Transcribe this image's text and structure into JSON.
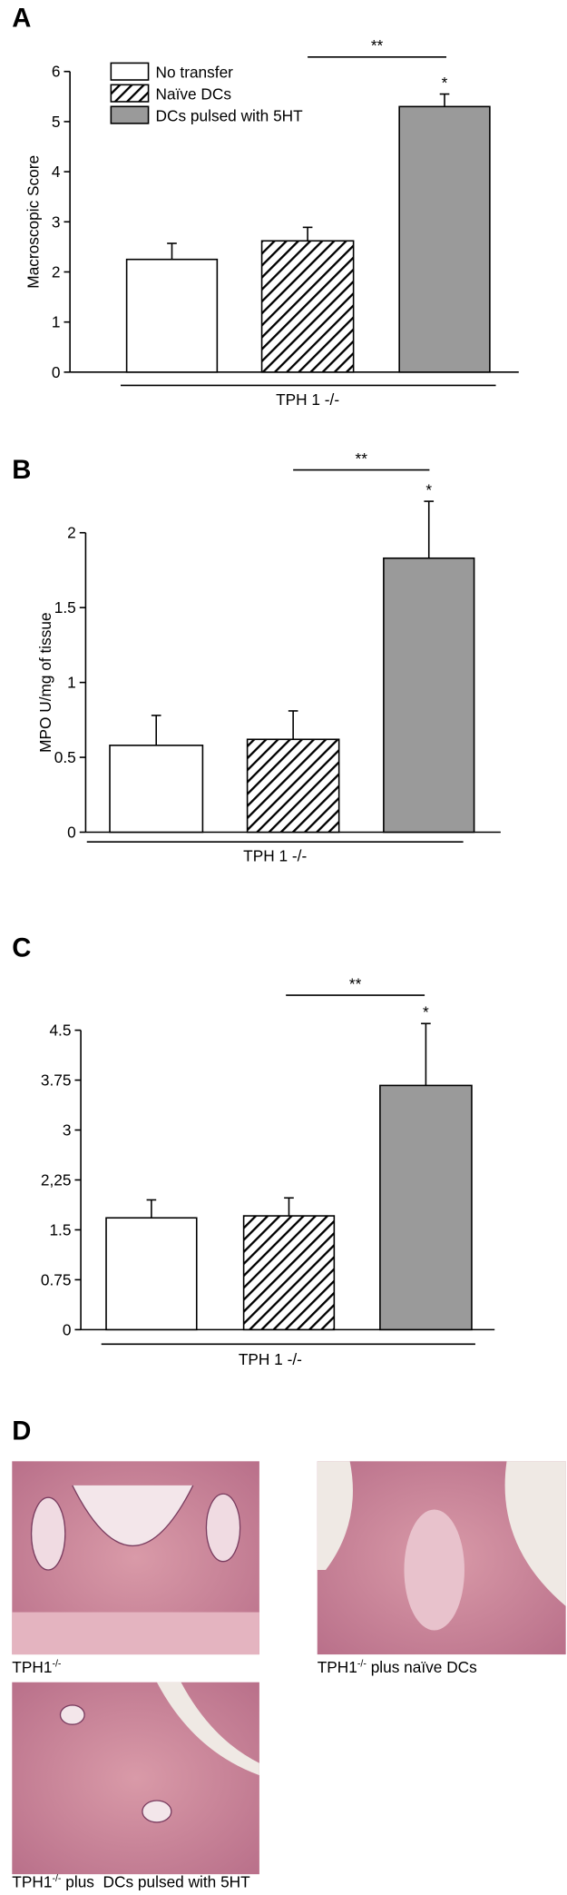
{
  "chart_data": [
    {
      "type": "bar",
      "panel": "A",
      "ylabel": "Macroscopic Score",
      "categories": [
        "No transfer",
        "Naïve DCs",
        "DCs pulsed with 5HT"
      ],
      "values": [
        2.25,
        2.62,
        5.3
      ],
      "errors": [
        0.32,
        0.27,
        0.25
      ],
      "fills": [
        "#ffffff",
        "hatch",
        "#9a9a9a"
      ],
      "ylim": [
        0,
        6
      ],
      "yticks": [
        0,
        1,
        2,
        3,
        4,
        5,
        6
      ],
      "group_label": "TPH 1 -/-",
      "annotations": [
        "**",
        "*"
      ],
      "legend": "top-left"
    },
    {
      "type": "bar",
      "panel": "B",
      "ylabel": "MPO U/mg of tissue",
      "values": [
        0.58,
        0.62,
        1.83
      ],
      "errors": [
        0.2,
        0.19,
        0.38
      ],
      "fills": [
        "#ffffff",
        "hatch",
        "#9a9a9a"
      ],
      "ylim": [
        0,
        2
      ],
      "yticks": [
        0,
        0.5,
        1,
        1.5,
        2
      ],
      "group_label": "TPH 1 -/-",
      "annotations": [
        "**",
        "*"
      ]
    },
    {
      "type": "bar",
      "panel": "C",
      "values": [
        1.68,
        1.71,
        3.67
      ],
      "errors": [
        0.27,
        0.27,
        0.93
      ],
      "fills": [
        "#ffffff",
        "hatch",
        "#9a9a9a"
      ],
      "ylim": [
        0,
        4.5
      ],
      "yticks": [
        0,
        0.75,
        1.5,
        {
          "value": 2.25,
          "label": "2,25"
        },
        3,
        3.75,
        4.5
      ],
      "group_label": "TPH 1 -/-",
      "annotations": [
        "**",
        "*"
      ]
    }
  ],
  "images": {
    "panel": "D",
    "captions": [
      {
        "base": "TPH1",
        "sup": "-/-"
      },
      {
        "base": "TPH1",
        "sup": "-/-",
        "rest": " plus naïve DCs"
      },
      {
        "base": "TPH1",
        "sup": "-/-",
        "rest": " plus  DCs pulsed with 5HT"
      }
    ]
  }
}
